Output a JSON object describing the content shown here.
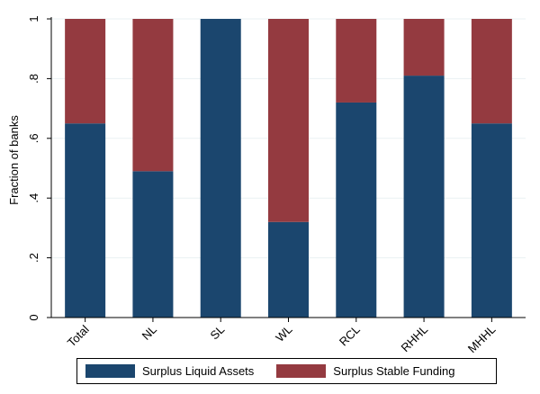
{
  "chart_data": {
    "type": "bar",
    "stacked": true,
    "title": "",
    "xlabel": "",
    "ylabel": "Fraction of banks",
    "ylim": [
      0,
      1
    ],
    "yticks": [
      0,
      0.2,
      0.4,
      0.6,
      0.8,
      1
    ],
    "ytick_labels": [
      "0",
      ".2",
      ".4",
      ".6",
      ".8",
      "1"
    ],
    "grid": true,
    "legend_position": "bottom",
    "categories": [
      "Total",
      "NL",
      "SL",
      "WL",
      "RCL",
      "RHHL",
      "MHHL"
    ],
    "series": [
      {
        "name": "Surplus Liquid Assets",
        "color": "#1b466e",
        "values": [
          0.65,
          0.49,
          1.0,
          0.32,
          0.72,
          0.81,
          0.65
        ]
      },
      {
        "name": "Surplus Stable Funding",
        "color": "#943a40",
        "values": [
          0.35,
          0.51,
          0.0,
          0.68,
          0.28,
          0.19,
          0.35
        ]
      }
    ]
  }
}
